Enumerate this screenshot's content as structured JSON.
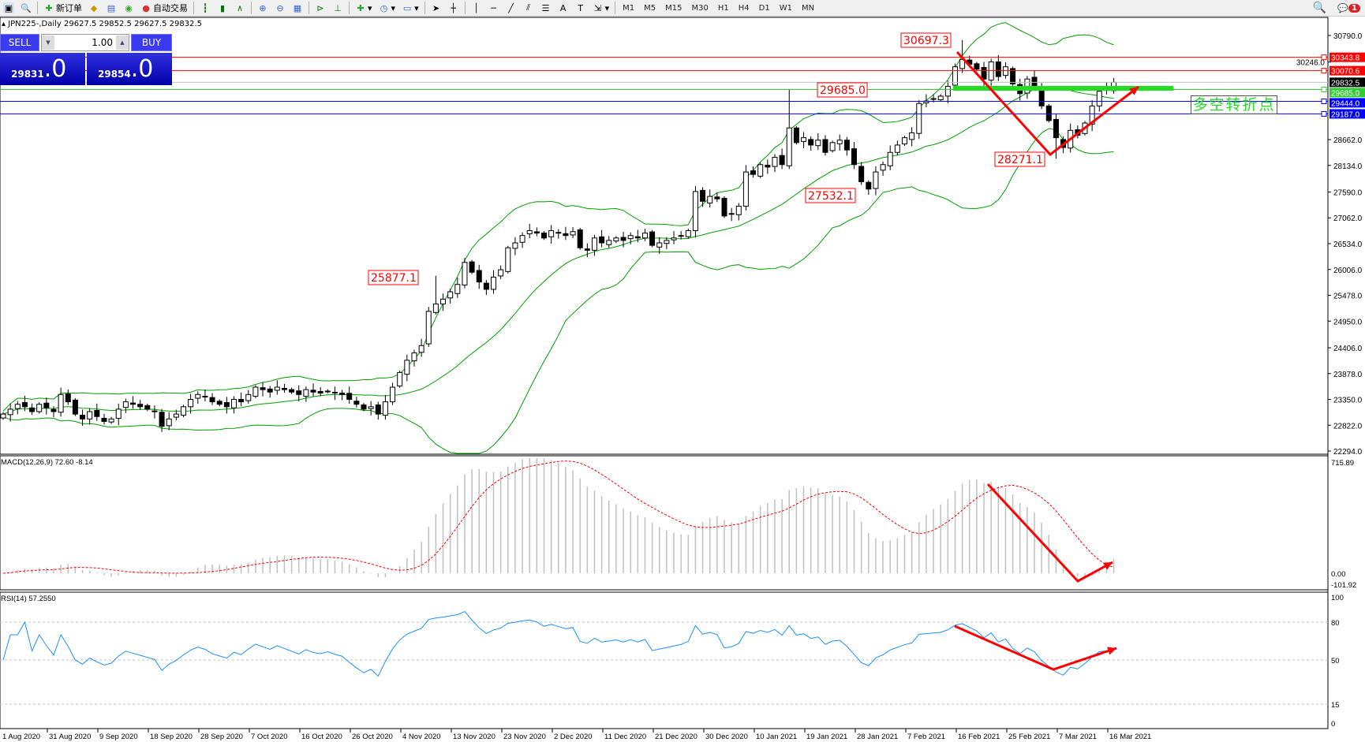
{
  "toolbar": {
    "new_order": "新订单",
    "auto_trading": "自动交易",
    "icons": [
      "zoom-window-icon",
      "new-order-icon",
      "metaeditor-icon",
      "navigator-icon",
      "signals-icon",
      "autotrading-icon",
      "bar-chart-icon",
      "candlestick-icon",
      "line-chart-icon",
      "zoom-in-icon",
      "zoom-out-icon",
      "tile-windows-icon",
      "autoscroll-icon",
      "chart-shift-icon",
      "indicators-icon",
      "periods-icon",
      "templates-icon",
      "cursor-icon",
      "crosshair-icon",
      "vertical-line-icon",
      "horizontal-line-icon",
      "trendline-icon",
      "equidistant-channel-icon",
      "fibonacci-icon",
      "text-icon",
      "text-label-icon",
      "arrows-icon"
    ],
    "timeframes": [
      "M1",
      "M5",
      "M15",
      "M30",
      "H1",
      "H4",
      "D1",
      "W1",
      "MN"
    ],
    "notification_count": "1"
  },
  "chart_header": "JPN225-,Daily  29627.5 29852.5 29627.5 29832.5",
  "trade_panel": {
    "sell_label": "SELL",
    "buy_label": "BUY",
    "lot": "1.00",
    "sell_price_main": "29831",
    "sell_price_big": ".0",
    "buy_price_main": "29854",
    "buy_price_big": ".0"
  },
  "colors": {
    "up_body": "#ffffff",
    "down_body": "#000000",
    "bands": "#00a000",
    "macd_hist": "#c0c0c0",
    "macd_signal": "#ff0000",
    "rsi": "#1e90ff",
    "annot": "#ff0000"
  },
  "chart_data": {
    "type": "candlestick",
    "symbol": "JPN225-",
    "timeframe": "Daily",
    "ylim": [
      22294.0,
      30790.0
    ],
    "y_ticks": [
      "30790.0",
      "30246.0",
      "28662.0",
      "28134.0",
      "27590.0",
      "27062.0",
      "26534.0",
      "26006.0",
      "25478.0",
      "24950.0",
      "24406.0",
      "23878.0",
      "23350.0",
      "22822.0",
      "22294.0"
    ],
    "x_labels": [
      "1 Aug 2020",
      "31 Aug 2020",
      "9 Sep 2020",
      "18 Sep 2020",
      "28 Sep 2020",
      "7 Oct 2020",
      "16 Oct 2020",
      "26 Oct 2020",
      "4 Nov 2020",
      "13 Nov 2020",
      "23 Nov 2020",
      "2 Dec 2020",
      "11 Dec 2020",
      "21 Dec 2020",
      "30 Dec 2020",
      "10 Jan 2021",
      "19 Jan 2021",
      "28 Jan 2021",
      "7 Feb 2021",
      "16 Feb 2021",
      "25 Feb 2021",
      "7 Mar 2021",
      "16 Mar 2021"
    ],
    "close": [
      23050,
      23150,
      23250,
      23200,
      23100,
      23250,
      23180,
      23100,
      23450,
      23300,
      23050,
      22950,
      23100,
      23000,
      22900,
      22950,
      23150,
      23300,
      23250,
      23200,
      23150,
      23100,
      22800,
      22950,
      23050,
      23200,
      23350,
      23450,
      23400,
      23300,
      23250,
      23200,
      23350,
      23300,
      23450,
      23600,
      23550,
      23500,
      23600,
      23550,
      23500,
      23450,
      23550,
      23500,
      23480,
      23520,
      23480,
      23450,
      23350,
      23250,
      23150,
      23200,
      23050,
      23300,
      23600,
      23900,
      24150,
      24300,
      24450,
      25150,
      25300,
      25400,
      25550,
      25700,
      26150,
      25950,
      25750,
      25600,
      25850,
      26000,
      26450,
      26550,
      26700,
      26800,
      26750,
      26650,
      26800,
      26750,
      26700,
      26780,
      26450,
      26400,
      26650,
      26550,
      26600,
      26650,
      26600,
      26700,
      26650,
      26750,
      26500,
      26550,
      26600,
      26650,
      26700,
      26800,
      27600,
      27400,
      27500,
      27450,
      27100,
      27150,
      27300,
      28000,
      27950,
      28150,
      28100,
      28300,
      28150,
      28900,
      28600,
      28700,
      28550,
      28650,
      28400,
      28600,
      28650,
      28450,
      28150,
      27800,
      27650,
      28000,
      28150,
      28400,
      28550,
      28700,
      28800,
      29400,
      29450,
      29500,
      29550,
      29750,
      30150,
      30300,
      30200,
      30100,
      29900,
      30250,
      29950,
      30150,
      29800,
      29600,
      29900,
      29750,
      29350,
      29050,
      28700,
      28500,
      28850,
      28750,
      29000,
      29350,
      29650,
      29700,
      29832.5
    ],
    "price_lines": [
      {
        "value": "30343.8",
        "color": "#ff0000"
      },
      {
        "value": "30070.6",
        "color": "#ff0000"
      },
      {
        "value": "29832.5",
        "color": "#000000"
      },
      {
        "value": "29685.0",
        "color": "#32cd32"
      },
      {
        "value": "29444.0",
        "color": "#0000ff"
      },
      {
        "value": "29187.0",
        "color": "#0000ff"
      }
    ],
    "price_labels": [
      {
        "text": "30697.3",
        "index": 133
      },
      {
        "text": "29685.0",
        "index": 109
      },
      {
        "text": "28271.1",
        "index": 146
      },
      {
        "text": "27532.1",
        "index": 120
      },
      {
        "text": "25877.1",
        "index": 60
      }
    ],
    "annotation_text": "多空转折点",
    "indicators": {
      "bollinger": "Bands",
      "macd": {
        "label": "MACD(12,26,9) 72.60 -8.14",
        "ylim": [
          -101.92,
          715.89
        ],
        "ticks": [
          "715.89",
          "0.00",
          "-101.92"
        ]
      },
      "rsi": {
        "label": "RSI(14) 57.2550",
        "levels": [
          "100",
          "80",
          "50",
          "15",
          "0"
        ]
      }
    }
  }
}
